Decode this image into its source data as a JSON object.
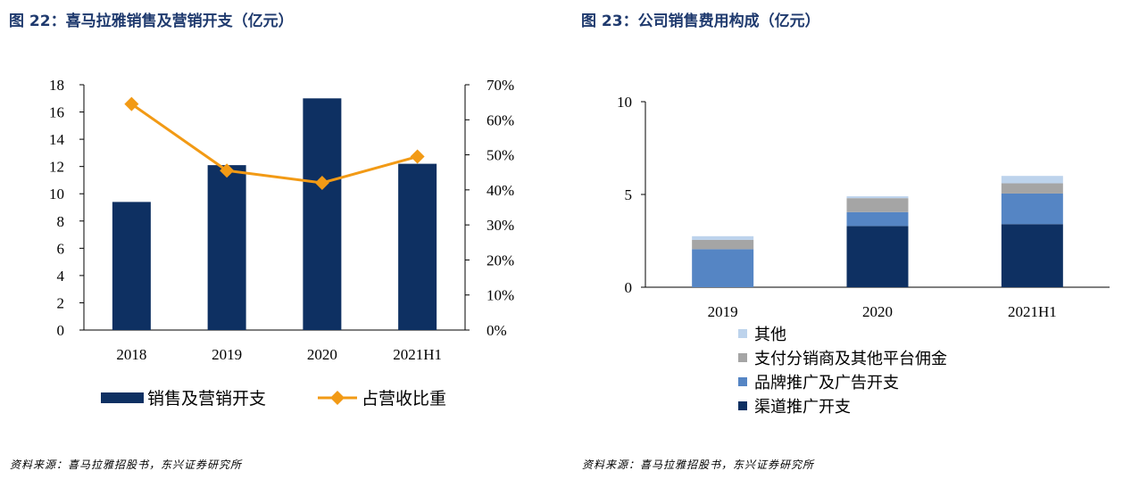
{
  "left": {
    "title": "图 22：喜马拉雅销售及营销开支（亿元）",
    "source": "资料来源：喜马拉雅招股书，东兴证券研究所"
  },
  "right": {
    "title": "图 23：公司销售费用构成（亿元）",
    "source": "资料来源：喜马拉雅招股书，东兴证券研究所"
  },
  "colors": {
    "title": "#1f3a6e",
    "navy": "#0e3062",
    "orange": "#f29a15",
    "blue": "#5585c4",
    "gray": "#a5a5a5",
    "lightblue": "#bdd3ec"
  },
  "chart_data": [
    {
      "type": "bar",
      "categories": [
        "2018",
        "2019",
        "2020",
        "2021H1"
      ],
      "series": [
        {
          "name": "销售及营销开支",
          "type": "bar",
          "axis": "left",
          "values": [
            9.4,
            12.1,
            17.0,
            12.2
          ]
        },
        {
          "name": "占营收比重",
          "type": "line",
          "axis": "right",
          "values": [
            0.645,
            0.455,
            0.42,
            0.495
          ]
        }
      ],
      "ylim": [
        0,
        18
      ],
      "yticks": [
        "0",
        "2",
        "4",
        "6",
        "8",
        "10",
        "12",
        "14",
        "16",
        "18"
      ],
      "y2lim": [
        0,
        0.7
      ],
      "y2ticks": [
        "0%",
        "10%",
        "20%",
        "30%",
        "40%",
        "50%",
        "60%",
        "70%"
      ],
      "legend": "bottom",
      "grid": false
    },
    {
      "type": "bar",
      "stacked": true,
      "categories": [
        "2019",
        "2020",
        "2021H1"
      ],
      "series": [
        {
          "name": "渠道推广开支",
          "values": [
            0.0,
            3.3,
            3.4
          ]
        },
        {
          "name": "品牌推广及广告开支",
          "values": [
            2.05,
            0.75,
            1.65
          ]
        },
        {
          "name": "支付分销商及其他平台佣金",
          "values": [
            0.5,
            0.75,
            0.55
          ]
        },
        {
          "name": "其他",
          "values": [
            0.2,
            0.1,
            0.4
          ]
        }
      ],
      "ylim": [
        0,
        10
      ],
      "yticks": [
        "0",
        "5",
        "10"
      ],
      "legend": "bottom",
      "grid": false
    }
  ]
}
